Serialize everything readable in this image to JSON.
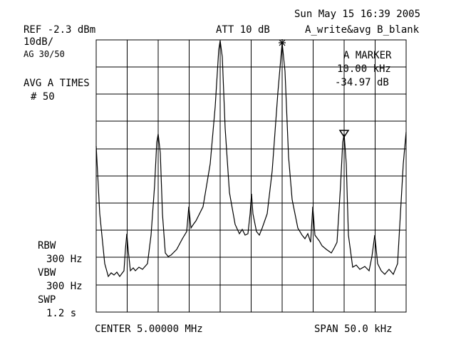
{
  "header": {
    "datetime": "Sun May 15 16:39 2005",
    "ref": "REF -2.3 dBm",
    "att": "ATT 10 dB",
    "trace_mode": "A_write&avg B_blank"
  },
  "left_panel": {
    "scale": "10dB/",
    "ag": "AG 30/50",
    "avg": "AVG A TIMES",
    "avg_count": "# 50"
  },
  "marker": {
    "title": "A MARKER",
    "freq": "10.00 kHz",
    "level": "-34.97 dB"
  },
  "settings": {
    "rbw_label": "RBW",
    "rbw": "300 Hz",
    "vbw_label": "VBW",
    "vbw": "300 Hz",
    "swp_label": "SWP",
    "swp": "1.2 s"
  },
  "footer": {
    "center": "CENTER 5.00000 MHz",
    "span": "SPAN 50.0 kHz"
  }
}
